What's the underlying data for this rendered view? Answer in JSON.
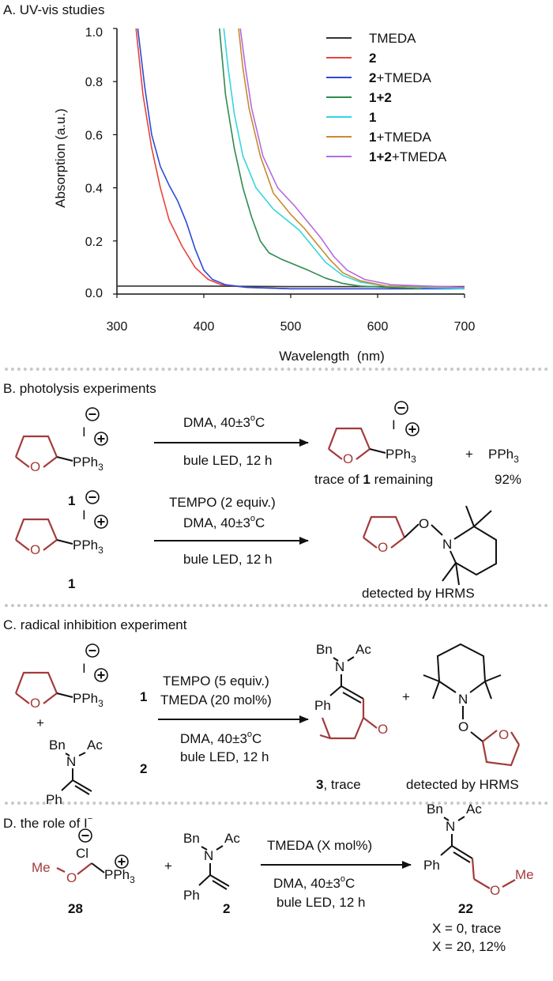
{
  "panelA": {
    "title": "A. UV-vis studies",
    "chart_data": {
      "type": "line",
      "xlabel": "Wavelength  (nm)",
      "ylabel": "Absorption (a.u.)",
      "xlim": [
        300,
        700
      ],
      "ylim": [
        0,
        1.0
      ],
      "xticks": [
        "300",
        "400",
        "500",
        "600",
        "700"
      ],
      "yticks": [
        "0.0",
        "0.2",
        "0.4",
        "0.6",
        "0.8",
        "1.0"
      ],
      "legend_position": "top-right",
      "series": [
        {
          "legend_main": "TMEDA",
          "legend_bold": "",
          "legend_rest": "TMEDA",
          "color": "#333333",
          "points": [
            [
              300,
              0.03
            ],
            [
              400,
              0.03
            ],
            [
              500,
              0.028
            ],
            [
              600,
              0.028
            ],
            [
              700,
              0.028
            ]
          ]
        },
        {
          "legend_main": "2",
          "legend_bold": "2",
          "legend_rest": "",
          "color": "#e8433b",
          "points": [
            [
              322,
              1.0
            ],
            [
              330,
              0.75
            ],
            [
              340,
              0.55
            ],
            [
              350,
              0.4
            ],
            [
              360,
              0.28
            ],
            [
              375,
              0.18
            ],
            [
              390,
              0.1
            ],
            [
              405,
              0.055
            ],
            [
              420,
              0.035
            ],
            [
              450,
              0.025
            ],
            [
              500,
              0.02
            ],
            [
              600,
              0.02
            ],
            [
              650,
              0.02
            ]
          ]
        },
        {
          "legend_main": "2+TMEDA",
          "legend_bold": "2",
          "legend_rest": "+TMEDA",
          "color": "#2b4bd6",
          "points": [
            [
              324,
              1.0
            ],
            [
              332,
              0.78
            ],
            [
              340,
              0.6
            ],
            [
              350,
              0.48
            ],
            [
              360,
              0.41
            ],
            [
              370,
              0.35
            ],
            [
              380,
              0.27
            ],
            [
              390,
              0.17
            ],
            [
              400,
              0.09
            ],
            [
              410,
              0.055
            ],
            [
              425,
              0.035
            ],
            [
              450,
              0.025
            ],
            [
              500,
              0.02
            ],
            [
              700,
              0.02
            ]
          ]
        },
        {
          "legend_main": "1+2",
          "legend_bold": "1+2",
          "legend_rest": "",
          "color": "#2e8b4e",
          "points": [
            [
              418,
              1.0
            ],
            [
              425,
              0.75
            ],
            [
              435,
              0.55
            ],
            [
              445,
              0.4
            ],
            [
              455,
              0.29
            ],
            [
              465,
              0.2
            ],
            [
              475,
              0.155
            ],
            [
              490,
              0.13
            ],
            [
              505,
              0.11
            ],
            [
              520,
              0.09
            ],
            [
              540,
              0.06
            ],
            [
              560,
              0.04
            ],
            [
              580,
              0.03
            ],
            [
              650,
              0.02
            ]
          ]
        },
        {
          "legend_main": "1",
          "legend_bold": "1",
          "legend_rest": "",
          "color": "#35d6e0",
          "points": [
            [
              423,
              1.0
            ],
            [
              428,
              0.85
            ],
            [
              435,
              0.68
            ],
            [
              445,
              0.52
            ],
            [
              460,
              0.4
            ],
            [
              480,
              0.32
            ],
            [
              495,
              0.28
            ],
            [
              510,
              0.24
            ],
            [
              525,
              0.18
            ],
            [
              540,
              0.12
            ],
            [
              560,
              0.07
            ],
            [
              580,
              0.045
            ],
            [
              610,
              0.03
            ],
            [
              650,
              0.025
            ],
            [
              700,
              0.02
            ]
          ]
        },
        {
          "legend_main": "1+TMEDA",
          "legend_bold": "1",
          "legend_rest": "+TMEDA",
          "color": "#c98a2e",
          "points": [
            [
              440,
              1.0
            ],
            [
              445,
              0.85
            ],
            [
              452,
              0.7
            ],
            [
              465,
              0.52
            ],
            [
              480,
              0.38
            ],
            [
              500,
              0.3
            ],
            [
              515,
              0.25
            ],
            [
              530,
              0.19
            ],
            [
              545,
              0.13
            ],
            [
              560,
              0.08
            ],
            [
              580,
              0.05
            ],
            [
              610,
              0.03
            ],
            [
              700,
              0.025
            ]
          ]
        },
        {
          "legend_main": "1+2+TMEDA",
          "legend_bold": "1+2",
          "legend_rest": "+TMEDA",
          "color": "#b26be0",
          "points": [
            [
              442,
              1.0
            ],
            [
              448,
              0.85
            ],
            [
              455,
              0.7
            ],
            [
              468,
              0.52
            ],
            [
              485,
              0.4
            ],
            [
              505,
              0.33
            ],
            [
              520,
              0.27
            ],
            [
              535,
              0.21
            ],
            [
              550,
              0.14
            ],
            [
              565,
              0.09
            ],
            [
              585,
              0.055
            ],
            [
              615,
              0.035
            ],
            [
              700,
              0.025
            ]
          ]
        }
      ]
    }
  },
  "panelB": {
    "title": "B. photolysis experiments",
    "iodide": "I",
    "pph3": "PPh",
    "sub3": "3",
    "o_atom": "O",
    "n_atom": "N",
    "cmpd1": "1",
    "rxn1_cond1": "DMA, 40±3",
    "rxn1_deg": "o",
    "rxn1_C": "C",
    "rxn1_cond2": "bule LED, 12 h",
    "product_pph3": "PPh",
    "plus": "+",
    "trace_of": "trace of ",
    "trace_bold": "1",
    "trace_rest": " remaining",
    "yield": "92%",
    "rxn2_cond0": "TEMPO (2 equiv.)",
    "rxn2_cond1": "DMA, 40±3",
    "rxn2_cond2": "bule LED, 12 h",
    "detected": "detected by HRMS"
  },
  "panelC": {
    "title": "C. radical inhibition experiment",
    "cmpd1": "1",
    "cmpd2": "2",
    "plus": "+",
    "bn": "Bn",
    "ac": "Ac",
    "ph": "Ph",
    "cond0": "TEMPO (5 equiv.)",
    "cond1": "TMEDA (20 mol%)",
    "cond2": "DMA, 40±3",
    "cond3": "bule LED, 12 h",
    "product_num": "3",
    "product_rest": ", trace",
    "detected": "detected by HRMS"
  },
  "panelD": {
    "title": "D. the role of I",
    "title_sup": "−",
    "cl": "Cl",
    "me": "Me",
    "cmpd28": "28",
    "cmpd2": "2",
    "cmpd22": "22",
    "cond1": "TMEDA (X mol%)",
    "cond2": "DMA, 40±3",
    "cond3": "bule LED, 12 h",
    "result1": "X = 0, trace",
    "result2": "X = 20, 12%"
  }
}
